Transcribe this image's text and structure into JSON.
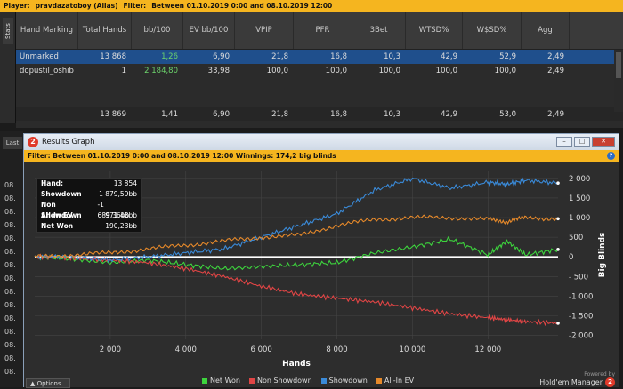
{
  "topbar": {
    "player_label": "Player:",
    "player": "pravdazatoboy (Alias)",
    "filter_label": "Filter:",
    "filter": "Between 01.10.2019 0:00 and 08.10.2019 12:00"
  },
  "side_tab": "Stats",
  "table": {
    "headers": [
      "Hand Marking",
      "Total Hands",
      "bb/100",
      "EV bb/100",
      "VPIP",
      "PFR",
      "3Bet",
      "WTSD%",
      "W$SD%",
      "Agg"
    ],
    "rows": [
      [
        "Unmarked",
        "13 868",
        "1,26",
        "6,90",
        "21,8",
        "16,8",
        "10,3",
        "42,9",
        "52,9",
        "2,49"
      ],
      [
        "dopustil_oshib",
        "1",
        "2 184,80",
        "33,98",
        "100,0",
        "100,0",
        "100,0",
        "100,0",
        "100,0",
        "2,49"
      ]
    ],
    "totals": [
      "",
      "13 869",
      "1,41",
      "6,90",
      "21,8",
      "16,8",
      "10,3",
      "42,9",
      "53,0",
      "2,49"
    ]
  },
  "left_panel": {
    "tab": "Last",
    "rows": [
      "08.",
      "08.",
      "08.",
      "08.",
      "08.",
      "08.",
      "08.",
      "08.",
      "08.",
      "08.",
      "08.",
      "08.",
      "08.",
      "08.",
      "08."
    ]
  },
  "window": {
    "title": "Results Graph",
    "logo": "2",
    "filter_text": "Filter: Between 01.10.2019 0:00 and 08.10.2019 12:00  Winnings: 174,2 big blinds",
    "options_label": "Options",
    "powered_by": "Powered by",
    "brand": "Hold'em Manager",
    "brand_logo": "2"
  },
  "stats_box": [
    {
      "label": "Hand:",
      "value": "13 854"
    },
    {
      "label": "Showdown",
      "value": "1 879,59bb"
    },
    {
      "label": "Non Showdown",
      "value": "-1 689,36bb"
    },
    {
      "label": "All-In EV",
      "value": "971,43bb"
    },
    {
      "label": "Net Won",
      "value": "190,23bb"
    }
  ],
  "chart_data": {
    "type": "line",
    "xlabel": "Hands",
    "ylabel": "Big Blinds",
    "xlim": [
      0,
      13854
    ],
    "ylim": [
      -2100,
      2200
    ],
    "xticks": [
      2000,
      4000,
      6000,
      8000,
      10000,
      12000
    ],
    "xtick_labels": [
      "2 000",
      "4 000",
      "6 000",
      "8 000",
      "10 000",
      "12 000"
    ],
    "yticks": [
      2000,
      1500,
      1000,
      500,
      0,
      -500,
      -1000,
      -1500,
      -2000
    ],
    "ytick_labels": [
      "2 000",
      "1 500",
      "1 000",
      "500",
      "0",
      "- 500",
      "-1 000",
      "-1 500",
      "-2 000"
    ],
    "x": [
      0,
      1000,
      2000,
      3000,
      4000,
      5000,
      6000,
      7000,
      8000,
      9000,
      10000,
      11000,
      12000,
      12500,
      13000,
      13854
    ],
    "series": [
      {
        "name": "Net Won",
        "color": "#3dd43d",
        "values": [
          0,
          -50,
          -150,
          -80,
          -200,
          -300,
          -250,
          -200,
          -150,
          100,
          250,
          450,
          50,
          400,
          50,
          190
        ]
      },
      {
        "name": "Non Showdown",
        "color": "#e04545",
        "values": [
          0,
          -30,
          -80,
          -150,
          -300,
          -500,
          -750,
          -950,
          -1050,
          -1150,
          -1300,
          -1450,
          -1550,
          -1600,
          -1650,
          -1689
        ]
      },
      {
        "name": "Showdown",
        "color": "#3a8ad8",
        "values": [
          0,
          0,
          -80,
          0,
          100,
          200,
          500,
          800,
          1100,
          1700,
          2000,
          1750,
          1900,
          1850,
          1950,
          1880
        ]
      },
      {
        "name": "All-In EV",
        "color": "#e6892a",
        "values": [
          0,
          50,
          100,
          200,
          300,
          400,
          500,
          550,
          800,
          950,
          1000,
          1000,
          950,
          900,
          1000,
          971
        ]
      }
    ]
  }
}
